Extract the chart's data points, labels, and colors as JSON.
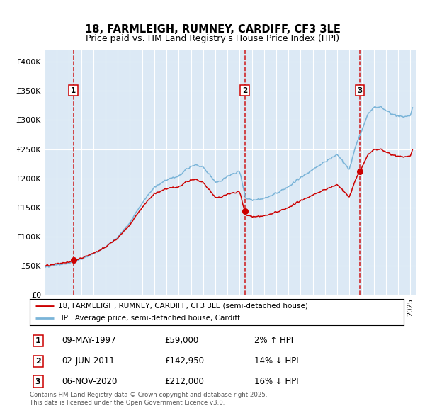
{
  "title": "18, FARMLEIGH, RUMNEY, CARDIFF, CF3 3LE",
  "subtitle": "Price paid vs. HM Land Registry's House Price Index (HPI)",
  "ylim": [
    0,
    420000
  ],
  "xlim_start": 1995.0,
  "xlim_end": 2025.5,
  "bg_color": "#dce9f5",
  "grid_color": "#ffffff",
  "sale_color": "#cc0000",
  "hpi_color": "#7ab4d8",
  "marker_color": "#cc0000",
  "vline_color": "#cc0000",
  "legend_sale": "18, FARMLEIGH, RUMNEY, CARDIFF, CF3 3LE (semi-detached house)",
  "legend_hpi": "HPI: Average price, semi-detached house, Cardiff",
  "annotations": [
    {
      "num": 1,
      "date": "09-MAY-1997",
      "price": "£59,000",
      "pct": "2%",
      "dir": "↑",
      "x_year": 1997.36,
      "y_val": 59000
    },
    {
      "num": 2,
      "date": "02-JUN-2011",
      "price": "£142,950",
      "pct": "14%",
      "dir": "↓",
      "x_year": 2011.42,
      "y_val": 142950
    },
    {
      "num": 3,
      "date": "06-NOV-2020",
      "price": "£212,000",
      "pct": "16%",
      "dir": "↓",
      "x_year": 2020.85,
      "y_val": 212000
    }
  ],
  "footer": "Contains HM Land Registry data © Crown copyright and database right 2025.\nThis data is licensed under the Open Government Licence v3.0."
}
